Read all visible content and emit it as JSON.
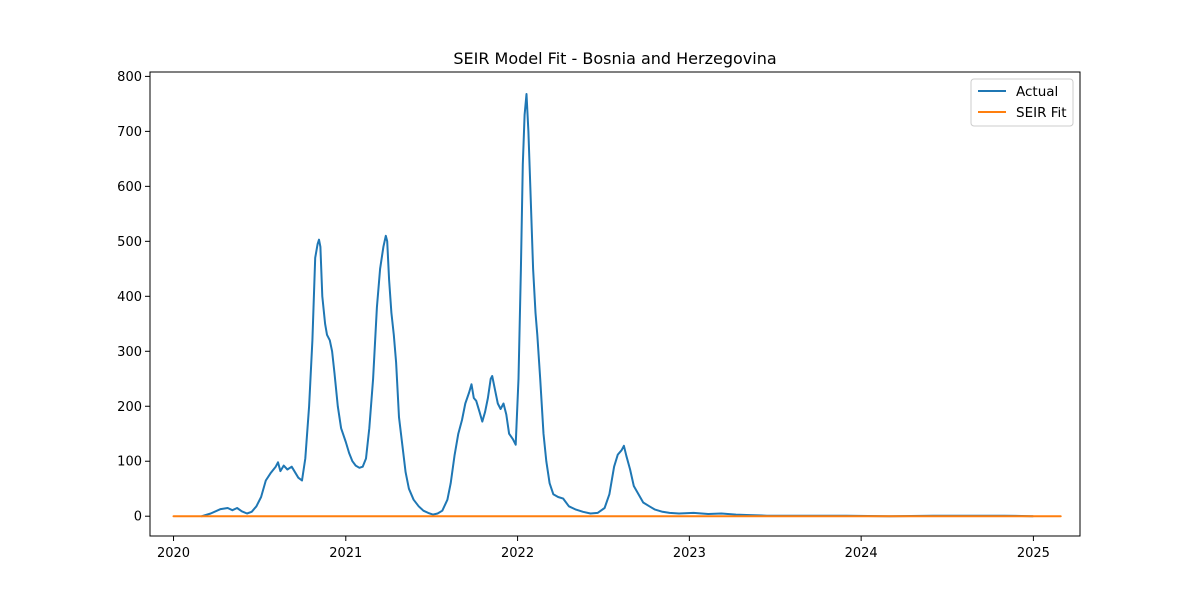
{
  "chart_data": {
    "type": "line",
    "title": "SEIR Model Fit - Bosnia and Herzegovina",
    "xlabel": "",
    "ylabel": "",
    "x_tick_labels": [
      "2020",
      "2021",
      "2022",
      "2023",
      "2024",
      "2025"
    ],
    "y_ticks": [
      0,
      100,
      200,
      300,
      400,
      500,
      600,
      700,
      800
    ],
    "xlim": [
      "2019-11-12",
      "2025-04-10"
    ],
    "ylim": [
      -36,
      808
    ],
    "grid": false,
    "legend": {
      "placement": "top-right",
      "entries": [
        "Actual",
        "SEIR Fit"
      ]
    },
    "series": [
      {
        "name": "Actual",
        "color": "#1f77b4",
        "points": [
          [
            "2020-03-01",
            0
          ],
          [
            "2020-03-20",
            5
          ],
          [
            "2020-04-10",
            13
          ],
          [
            "2020-04-25",
            15
          ],
          [
            "2020-05-05",
            11
          ],
          [
            "2020-05-15",
            15
          ],
          [
            "2020-05-25",
            9
          ],
          [
            "2020-06-05",
            5
          ],
          [
            "2020-06-15",
            8
          ],
          [
            "2020-06-25",
            18
          ],
          [
            "2020-07-05",
            35
          ],
          [
            "2020-07-15",
            65
          ],
          [
            "2020-07-25",
            78
          ],
          [
            "2020-08-05",
            90
          ],
          [
            "2020-08-10",
            98
          ],
          [
            "2020-08-15",
            82
          ],
          [
            "2020-08-22",
            92
          ],
          [
            "2020-08-30",
            85
          ],
          [
            "2020-09-08",
            90
          ],
          [
            "2020-09-15",
            80
          ],
          [
            "2020-09-22",
            70
          ],
          [
            "2020-09-30",
            65
          ],
          [
            "2020-10-07",
            105
          ],
          [
            "2020-10-15",
            200
          ],
          [
            "2020-10-22",
            320
          ],
          [
            "2020-10-28",
            470
          ],
          [
            "2020-11-02",
            495
          ],
          [
            "2020-11-05",
            503
          ],
          [
            "2020-11-08",
            490
          ],
          [
            "2020-11-12",
            400
          ],
          [
            "2020-11-18",
            350
          ],
          [
            "2020-11-22",
            330
          ],
          [
            "2020-11-28",
            320
          ],
          [
            "2020-12-03",
            300
          ],
          [
            "2020-12-08",
            260
          ],
          [
            "2020-12-15",
            200
          ],
          [
            "2020-12-22",
            160
          ],
          [
            "2021-01-01",
            135
          ],
          [
            "2021-01-08",
            115
          ],
          [
            "2021-01-15",
            100
          ],
          [
            "2021-01-22",
            92
          ],
          [
            "2021-01-30",
            88
          ],
          [
            "2021-02-06",
            90
          ],
          [
            "2021-02-13",
            105
          ],
          [
            "2021-02-20",
            160
          ],
          [
            "2021-02-28",
            250
          ],
          [
            "2021-03-08",
            380
          ],
          [
            "2021-03-15",
            450
          ],
          [
            "2021-03-22",
            490
          ],
          [
            "2021-03-27",
            510
          ],
          [
            "2021-03-30",
            500
          ],
          [
            "2021-04-03",
            430
          ],
          [
            "2021-04-08",
            370
          ],
          [
            "2021-04-13",
            330
          ],
          [
            "2021-04-18",
            280
          ],
          [
            "2021-04-24",
            180
          ],
          [
            "2021-05-01",
            130
          ],
          [
            "2021-05-08",
            80
          ],
          [
            "2021-05-15",
            50
          ],
          [
            "2021-05-25",
            30
          ],
          [
            "2021-06-05",
            18
          ],
          [
            "2021-06-15",
            10
          ],
          [
            "2021-06-25",
            6
          ],
          [
            "2021-07-05",
            3
          ],
          [
            "2021-07-15",
            5
          ],
          [
            "2021-07-25",
            10
          ],
          [
            "2021-08-05",
            30
          ],
          [
            "2021-08-12",
            60
          ],
          [
            "2021-08-20",
            110
          ],
          [
            "2021-08-28",
            150
          ],
          [
            "2021-09-05",
            175
          ],
          [
            "2021-09-12",
            205
          ],
          [
            "2021-09-20",
            225
          ],
          [
            "2021-09-25",
            240
          ],
          [
            "2021-09-30",
            215
          ],
          [
            "2021-10-05",
            210
          ],
          [
            "2021-10-12",
            190
          ],
          [
            "2021-10-18",
            172
          ],
          [
            "2021-10-24",
            190
          ],
          [
            "2021-10-30",
            215
          ],
          [
            "2021-11-05",
            250
          ],
          [
            "2021-11-08",
            255
          ],
          [
            "2021-11-14",
            230
          ],
          [
            "2021-11-20",
            205
          ],
          [
            "2021-11-26",
            195
          ],
          [
            "2021-12-02",
            205
          ],
          [
            "2021-12-08",
            185
          ],
          [
            "2021-12-14",
            150
          ],
          [
            "2021-12-22",
            140
          ],
          [
            "2021-12-28",
            130
          ],
          [
            "2022-01-03",
            250
          ],
          [
            "2022-01-08",
            450
          ],
          [
            "2022-01-12",
            640
          ],
          [
            "2022-01-16",
            730
          ],
          [
            "2022-01-20",
            768
          ],
          [
            "2022-01-24",
            700
          ],
          [
            "2022-01-28",
            600
          ],
          [
            "2022-02-03",
            450
          ],
          [
            "2022-02-08",
            370
          ],
          [
            "2022-02-12",
            330
          ],
          [
            "2022-02-18",
            250
          ],
          [
            "2022-02-25",
            150
          ],
          [
            "2022-03-03",
            100
          ],
          [
            "2022-03-10",
            60
          ],
          [
            "2022-03-18",
            40
          ],
          [
            "2022-03-28",
            35
          ],
          [
            "2022-04-08",
            32
          ],
          [
            "2022-04-20",
            18
          ],
          [
            "2022-05-05",
            12
          ],
          [
            "2022-05-20",
            8
          ],
          [
            "2022-06-05",
            5
          ],
          [
            "2022-06-20",
            6
          ],
          [
            "2022-07-05",
            15
          ],
          [
            "2022-07-15",
            40
          ],
          [
            "2022-07-25",
            90
          ],
          [
            "2022-08-02",
            112
          ],
          [
            "2022-08-10",
            120
          ],
          [
            "2022-08-15",
            128
          ],
          [
            "2022-08-20",
            110
          ],
          [
            "2022-08-28",
            85
          ],
          [
            "2022-09-05",
            55
          ],
          [
            "2022-09-15",
            40
          ],
          [
            "2022-09-25",
            25
          ],
          [
            "2022-10-08",
            18
          ],
          [
            "2022-10-20",
            12
          ],
          [
            "2022-11-05",
            8
          ],
          [
            "2022-11-20",
            6
          ],
          [
            "2022-12-10",
            5
          ],
          [
            "2023-01-10",
            6
          ],
          [
            "2023-02-10",
            4
          ],
          [
            "2023-03-10",
            5
          ],
          [
            "2023-04-10",
            3
          ],
          [
            "2023-05-10",
            2
          ],
          [
            "2023-06-15",
            1
          ],
          [
            "2023-08-01",
            1
          ],
          [
            "2023-10-01",
            1
          ],
          [
            "2023-12-01",
            1
          ],
          [
            "2024-03-01",
            0
          ],
          [
            "2024-06-01",
            1
          ],
          [
            "2024-09-01",
            1
          ],
          [
            "2024-11-01",
            1
          ],
          [
            "2024-12-31",
            0
          ]
        ]
      },
      {
        "name": "SEIR Fit",
        "color": "#ff7f0e",
        "points": [
          [
            "2020-01-01",
            0
          ],
          [
            "2025-02-28",
            0
          ]
        ]
      }
    ]
  }
}
